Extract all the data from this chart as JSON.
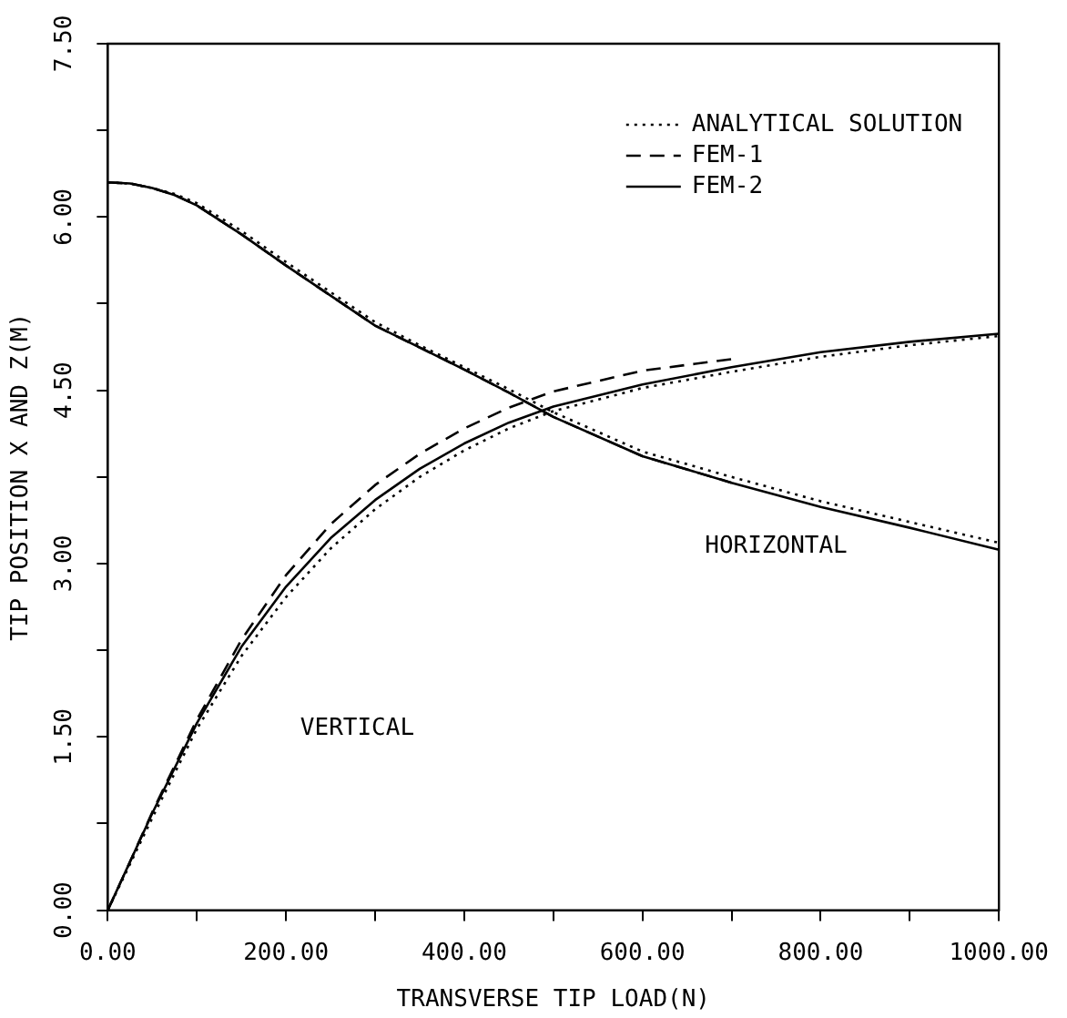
{
  "chart_data": {
    "type": "line",
    "xlabel": "TRANSVERSE TIP LOAD(N)",
    "ylabel": "TIP POSITION X AND Z(M)",
    "xlim": [
      0,
      1000
    ],
    "ylim": [
      0,
      7.5
    ],
    "xticks": [
      {
        "value": 0,
        "label": "0.00"
      },
      {
        "value": 100,
        "label": null
      },
      {
        "value": 200,
        "label": "200.00"
      },
      {
        "value": 300,
        "label": null
      },
      {
        "value": 400,
        "label": "400.00"
      },
      {
        "value": 500,
        "label": null
      },
      {
        "value": 600,
        "label": "600.00"
      },
      {
        "value": 700,
        "label": null
      },
      {
        "value": 800,
        "label": "800.00"
      },
      {
        "value": 900,
        "label": null
      },
      {
        "value": 1000,
        "label": "1000.00"
      }
    ],
    "yticks": [
      {
        "value": 0,
        "label": "0.00"
      },
      {
        "value": 0.75,
        "label": null
      },
      {
        "value": 1.5,
        "label": "1.50"
      },
      {
        "value": 2.25,
        "label": null
      },
      {
        "value": 3,
        "label": "3.00"
      },
      {
        "value": 3.75,
        "label": null
      },
      {
        "value": 4.5,
        "label": "4.50"
      },
      {
        "value": 5.25,
        "label": null
      },
      {
        "value": 6,
        "label": "6.00"
      },
      {
        "value": 6.75,
        "label": null
      },
      {
        "value": 7.5,
        "label": "7.50"
      }
    ],
    "grid": false,
    "legend": "top right",
    "marker": "none",
    "series": [
      {
        "name": "ANALYTICAL SOLUTION",
        "color": "#000000",
        "line_style": "dotted",
        "x": [
          0,
          25,
          50,
          100,
          150,
          200,
          250,
          300,
          350,
          400,
          450,
          500,
          600,
          700,
          800,
          900,
          1000
        ],
        "values": [
          0,
          0.4,
          0.8,
          1.57,
          2.2,
          2.71,
          3.13,
          3.47,
          3.75,
          3.98,
          4.17,
          4.32,
          4.52,
          4.66,
          4.79,
          4.89,
          4.97
        ]
      },
      {
        "name": "FEM-1",
        "color": "#000000",
        "line_style": "dashed",
        "x": [
          0,
          25,
          50,
          100,
          150,
          200,
          250,
          300,
          350,
          400,
          450,
          500,
          600,
          700
        ],
        "values": [
          0,
          0.42,
          0.85,
          1.65,
          2.34,
          2.9,
          3.34,
          3.68,
          3.95,
          4.17,
          4.35,
          4.49,
          4.67,
          4.77
        ]
      },
      {
        "name": "FEM-2",
        "color": "#000000",
        "line_style": "solid",
        "x": [
          0,
          25,
          50,
          100,
          150,
          200,
          250,
          300,
          350,
          400,
          450,
          500,
          600,
          700,
          800,
          900,
          1000
        ],
        "values": [
          0,
          0.42,
          0.84,
          1.62,
          2.28,
          2.8,
          3.22,
          3.55,
          3.82,
          4.04,
          4.22,
          4.36,
          4.55,
          4.7,
          4.83,
          4.92,
          4.99
        ]
      },
      {
        "color": "#000000",
        "line_style": "dotted",
        "x": [
          0,
          25,
          50,
          75,
          100,
          150,
          200,
          250,
          300,
          350,
          400,
          450,
          500,
          600,
          700,
          800,
          900,
          1000
        ],
        "values": [
          6.3,
          6.29,
          6.25,
          6.2,
          6.12,
          5.88,
          5.61,
          5.35,
          5.09,
          4.89,
          4.7,
          4.51,
          4.31,
          3.97,
          3.75,
          3.54,
          3.36,
          3.18
        ]
      },
      {
        "color": "#000000",
        "line_style": "dashed",
        "x": [
          0,
          25,
          50,
          75,
          100,
          150,
          200,
          250,
          300,
          350,
          400,
          450,
          500,
          600,
          700
        ],
        "values": [
          6.3,
          6.29,
          6.25,
          6.19,
          6.1,
          5.85,
          5.58,
          5.32,
          5.06,
          4.87,
          4.68,
          4.48,
          4.27,
          3.93,
          3.7
        ]
      },
      {
        "color": "#000000",
        "line_style": "solid",
        "x": [
          0,
          25,
          50,
          75,
          100,
          150,
          200,
          250,
          300,
          350,
          400,
          450,
          500,
          600,
          700,
          800,
          900,
          1000
        ],
        "values": [
          6.3,
          6.29,
          6.25,
          6.19,
          6.1,
          5.85,
          5.58,
          5.32,
          5.06,
          4.87,
          4.68,
          4.48,
          4.27,
          3.93,
          3.7,
          3.49,
          3.31,
          3.12
        ]
      }
    ],
    "annotations": [
      "VERTICAL",
      "HORIZONTAL"
    ]
  }
}
